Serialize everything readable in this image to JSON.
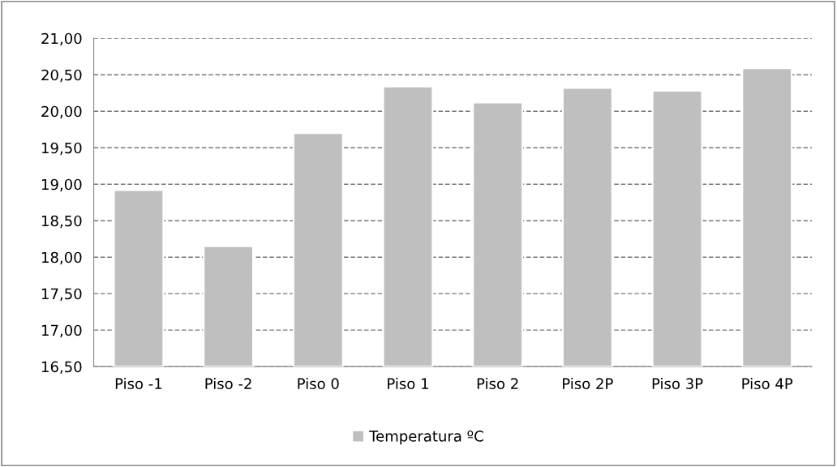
{
  "chart_data": {
    "type": "bar",
    "categories": [
      "Piso -1",
      "Piso -2",
      "Piso 0",
      "Piso 1",
      "Piso 2",
      "Piso 2P",
      "Piso 3P",
      "Piso 4P"
    ],
    "series": [
      {
        "name": "Temperatura ºC",
        "color": "#bfbfbf",
        "values": [
          18.92,
          18.15,
          19.7,
          20.34,
          20.12,
          20.32,
          20.28,
          20.59
        ]
      }
    ],
    "ylim": [
      16.5,
      21
    ],
    "yticks": [
      {
        "value": 16.5,
        "label": "16,50"
      },
      {
        "value": 17,
        "label": "17,00"
      },
      {
        "value": 17.5,
        "label": "17,50"
      },
      {
        "value": 18,
        "label": "18,00"
      },
      {
        "value": 18.5,
        "label": "18,50"
      },
      {
        "value": 19,
        "label": "19,00"
      },
      {
        "value": 19.5,
        "label": "19,50"
      },
      {
        "value": 20,
        "label": "20,00"
      },
      {
        "value": 20.5,
        "label": "20,50"
      },
      {
        "value": 21,
        "label": "21,00"
      }
    ],
    "grid": "y",
    "legend": "bottom"
  }
}
